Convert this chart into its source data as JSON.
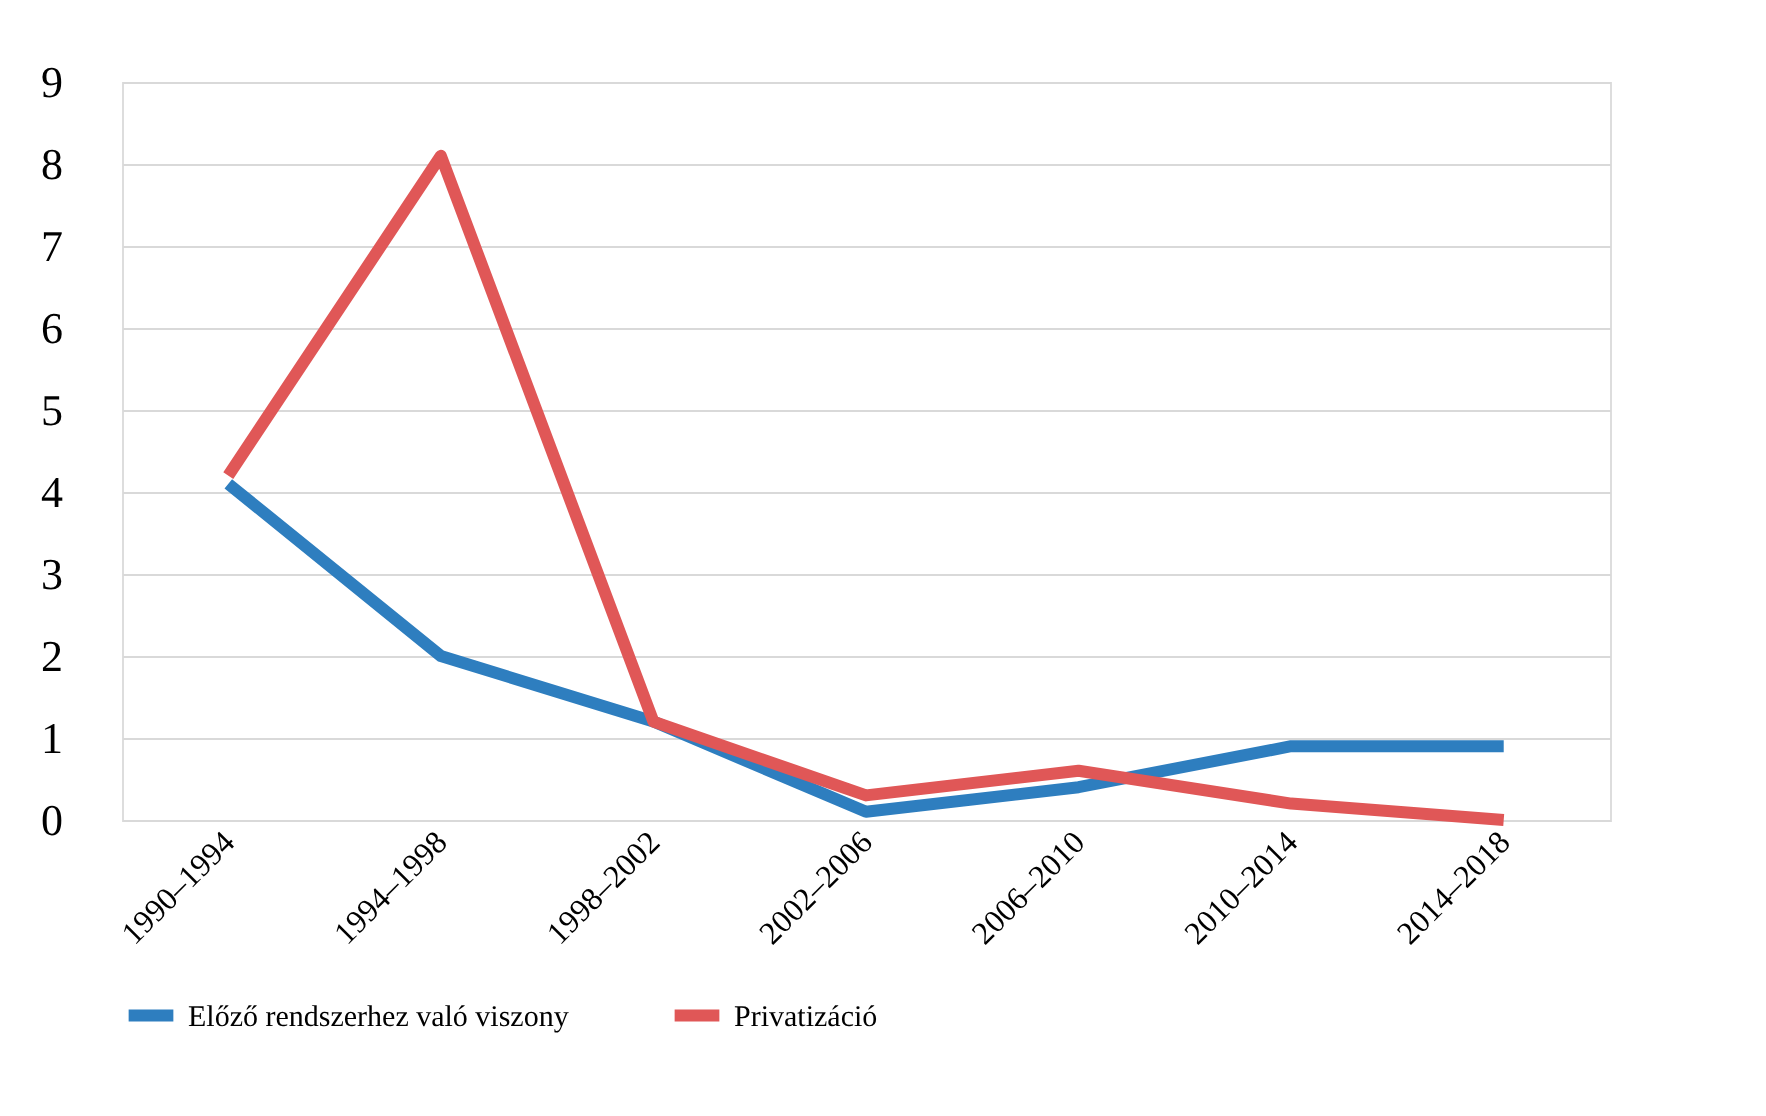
{
  "chart_data": {
    "type": "line",
    "categories": [
      "1990–1994",
      "1994–1998",
      "1998–2002",
      "2002–2006",
      "2006–2010",
      "2010–2014",
      "2014–2018"
    ],
    "series": [
      {
        "name": "Előző rendszerhez való viszony",
        "color": "#2e7ebf",
        "values": [
          4.1,
          2.0,
          1.2,
          0.1,
          0.4,
          0.9,
          0.9
        ]
      },
      {
        "name": "Privatizáció",
        "color": "#e05757",
        "values": [
          4.2,
          8.1,
          1.2,
          0.3,
          0.6,
          0.2,
          0.0
        ]
      }
    ],
    "ylim": [
      0,
      9
    ],
    "yticks": [
      0,
      1,
      2,
      3,
      4,
      5,
      6,
      7,
      8,
      9
    ],
    "grid": "y",
    "legend": "bottom",
    "marker": "none",
    "line_style": "solid"
  }
}
